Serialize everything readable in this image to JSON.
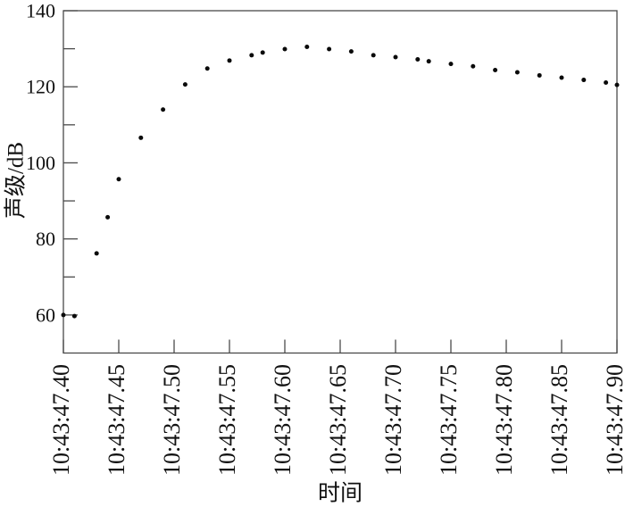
{
  "page": {
    "background_color": "#ffffff",
    "frame_color": "#4a4a4a",
    "text_color": "#111111",
    "marker_color": "#0a0a0a"
  },
  "chart_data": {
    "type": "scatter",
    "title": "",
    "xlabel": "时间",
    "ylabel": "声级/dB",
    "legend": "none",
    "grid": false,
    "frame": "full-box",
    "marker": {
      "shape": "dot",
      "radius_px": 2.5
    },
    "x_unit": "time of day (10:43:ss.ss)",
    "xlim_seconds": [
      47.4,
      47.9
    ],
    "ylim": [
      50,
      140
    ],
    "x_ticks": [
      {
        "seconds": 47.4,
        "label": "10:43:47.40"
      },
      {
        "seconds": 47.45,
        "label": "10:43:47.45"
      },
      {
        "seconds": 47.5,
        "label": "10:43:47.50"
      },
      {
        "seconds": 47.55,
        "label": "10:43:47.55"
      },
      {
        "seconds": 47.6,
        "label": "10:43:47.60"
      },
      {
        "seconds": 47.65,
        "label": "10:43:47.65"
      },
      {
        "seconds": 47.7,
        "label": "10:43:47.70"
      },
      {
        "seconds": 47.75,
        "label": "10:43:47.75"
      },
      {
        "seconds": 47.8,
        "label": "10:43:47.80"
      },
      {
        "seconds": 47.85,
        "label": "10:43:47.85"
      },
      {
        "seconds": 47.9,
        "label": "10:43:47.90"
      }
    ],
    "y_ticks_major": [
      60,
      80,
      100,
      120,
      140
    ],
    "y_ticks_minor": [
      70,
      90,
      110,
      130
    ],
    "series": [
      {
        "name": "声级",
        "points_seconds_db": [
          [
            47.4,
            60.0
          ],
          [
            47.41,
            59.7
          ],
          [
            47.43,
            76.2
          ],
          [
            47.44,
            85.7
          ],
          [
            47.45,
            95.7
          ],
          [
            47.47,
            106.6
          ],
          [
            47.49,
            114.0
          ],
          [
            47.51,
            120.6
          ],
          [
            47.53,
            124.8
          ],
          [
            47.55,
            126.9
          ],
          [
            47.57,
            128.3
          ],
          [
            47.58,
            129.0
          ],
          [
            47.6,
            129.9
          ],
          [
            47.62,
            130.5
          ],
          [
            47.64,
            129.9
          ],
          [
            47.66,
            129.3
          ],
          [
            47.68,
            128.3
          ],
          [
            47.7,
            127.8
          ],
          [
            47.72,
            127.2
          ],
          [
            47.73,
            126.7
          ],
          [
            47.75,
            126.0
          ],
          [
            47.77,
            125.4
          ],
          [
            47.79,
            124.4
          ],
          [
            47.81,
            123.8
          ],
          [
            47.83,
            123.0
          ],
          [
            47.85,
            122.4
          ],
          [
            47.87,
            121.8
          ],
          [
            47.89,
            121.1
          ],
          [
            47.9,
            120.5
          ]
        ]
      }
    ]
  }
}
